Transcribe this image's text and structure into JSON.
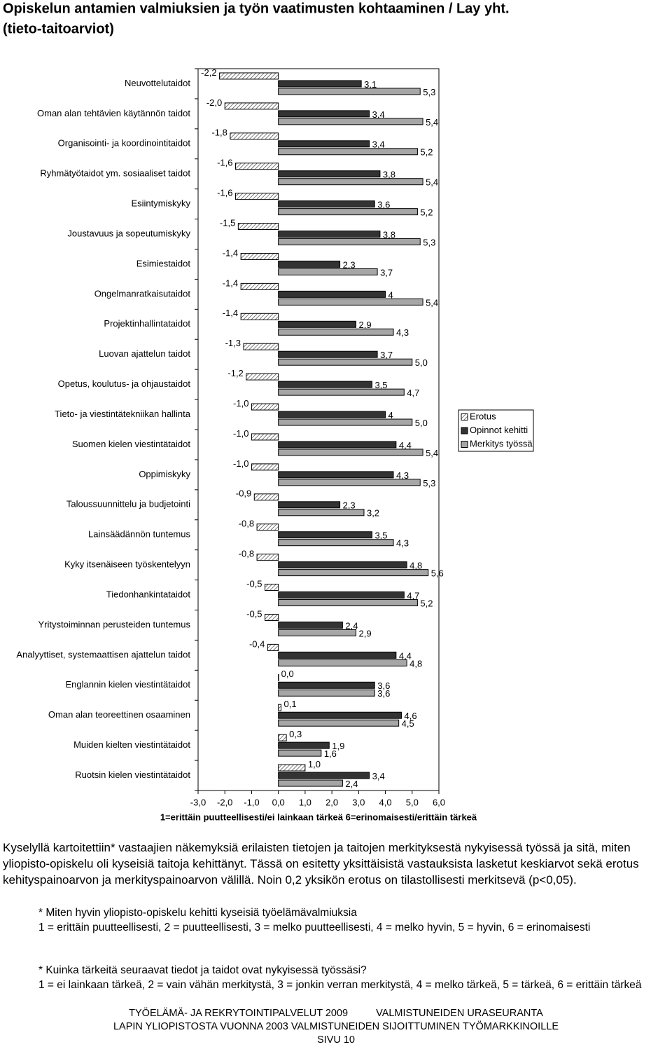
{
  "chart_data": {
    "type": "bar",
    "orientation": "horizontal",
    "title": "Opiskelun antamien valmiuksien ja työn vaatimusten kohtaaminen / Lay yht.",
    "subtitle": "(tieto-taitoarviot)",
    "x_label": "1=erittäin puutteellisesti/ei lainkaan tärkeä 6=erinomaisesti/erittäin tärkeä",
    "categories": [
      "Neuvottelutaidot",
      "Oman alan tehtävien käytännön taidot",
      "Organisointi- ja koordinointitaidot",
      "Ryhmätyötaidot ym. sosiaaliset taidot",
      "Esiintymiskyky",
      "Joustavuus ja sopeutumiskyky",
      "Esimiestaidot",
      "Ongelmanratkaisutaidot",
      "Projektinhallintataidot",
      "Luovan ajattelun taidot",
      "Opetus, koulutus- ja ohjaustaidot",
      "Tieto- ja viestintätekniikan hallinta",
      "Suomen kielen viestintätaidot",
      "Oppimiskyky",
      "Taloussuunnittelu ja budjetointi",
      "Lainsäädännön tuntemus",
      "Kyky itsenäiseen työskentelyyn",
      "Tiedonhankintataidot",
      "Yritystoiminnan perusteiden tuntemus",
      "Analyyttiset, systemaattisen ajattelun taidot",
      "Englannin kielen viestintätaidot",
      "Oman alan teoreettinen osaaminen",
      "Muiden kielten viestintätaidot",
      "Ruotsin kielen viestintätaidot"
    ],
    "series": [
      {
        "name": "Erotus",
        "color": "#333333",
        "hatch": true,
        "values": [
          -2.2,
          -2.0,
          -1.8,
          -1.6,
          -1.6,
          -1.5,
          -1.4,
          -1.4,
          -1.4,
          -1.3,
          -1.2,
          -1.0,
          -1.0,
          -1.0,
          -0.9,
          -0.8,
          -0.8,
          -0.5,
          -0.5,
          -0.4,
          0.0,
          0.1,
          0.3,
          1.0
        ],
        "value_labels": [
          "-2,2",
          "-2,0",
          "-1,8",
          "-1,6",
          "-1,6",
          "-1,5",
          "-1,4",
          "-1,4",
          "-1,4",
          "-1,3",
          "-1,2",
          "-1,0",
          "-1,0",
          "-1,0",
          "-0,9",
          "-0,8",
          "-0,8",
          "-0,5",
          "-0,5",
          "-0,4",
          "0,0",
          "0,1",
          "0,3",
          "1,0"
        ]
      },
      {
        "name": "Opinnot kehitti",
        "color": "#333333",
        "values": [
          3.1,
          3.4,
          3.4,
          3.8,
          3.6,
          3.8,
          2.3,
          4,
          2.9,
          3.7,
          3.5,
          4,
          4.4,
          4.3,
          2.3,
          3.5,
          4.8,
          4.7,
          2.4,
          4.4,
          3.6,
          4.6,
          1.9,
          3.4
        ],
        "value_labels": [
          "3,1",
          "3,4",
          "3,4",
          "3,8",
          "3,6",
          "3,8",
          "2,3",
          "4",
          "2,9",
          "3,7",
          "3,5",
          "4",
          "4,4",
          "4,3",
          "2,3",
          "3,5",
          "4,8",
          "4,7",
          "2,4",
          "4,4",
          "3,6",
          "4,6",
          "1,9",
          "3,4"
        ]
      },
      {
        "name": "Merkitys työssä",
        "color": "#a6a6a6",
        "values": [
          5.3,
          5.4,
          5.2,
          5.4,
          5.2,
          5.3,
          3.7,
          5.4,
          4.3,
          5.0,
          4.7,
          5.0,
          5.4,
          5.3,
          3.2,
          4.3,
          5.6,
          5.2,
          2.9,
          4.8,
          3.6,
          4.5,
          1.6,
          2.4
        ],
        "value_labels": [
          "5,3",
          "5,4",
          "5,2",
          "5,4",
          "5,2",
          "5,3",
          "3,7",
          "5,4",
          "4,3",
          "5,0",
          "4,7",
          "5,0",
          "5,4",
          "5,3",
          "3,2",
          "4,3",
          "5,6",
          "5,2",
          "2,9",
          "4,8",
          "3,6",
          "4,5",
          "1,6",
          "2,4"
        ]
      }
    ],
    "xlim": [
      -3,
      6
    ],
    "xticks": [
      {
        "value": -3,
        "label": "-3,0"
      },
      {
        "value": -2,
        "label": "-2,0"
      },
      {
        "value": -1,
        "label": "-1,0"
      },
      {
        "value": 0,
        "label": "0,0"
      },
      {
        "value": 1,
        "label": "1,0"
      },
      {
        "value": 2,
        "label": "2,0"
      },
      {
        "value": 3,
        "label": "3,0"
      },
      {
        "value": 4,
        "label": "4,0"
      },
      {
        "value": 5,
        "label": "5,0"
      },
      {
        "value": 6,
        "label": "6,0"
      }
    ],
    "legend": "right"
  },
  "document": {
    "paragraph": "Kyselyllä kartoitettiin* vastaajien näkemyksiä erilaisten tietojen ja taitojen merkityksestä nykyisessä työssä ja sitä, miten yliopisto-opiskelu oli kyseisiä taitoja kehittänyt. Tässä on esitetty yksittäisistä vastauksista lasketut keskiarvot sekä erotus kehityspainoarvon ja merkityspainoarvon välillä. Noin 0,2 yksikön erotus on tilastollisesti merkitsevä (p<0,05).",
    "notes": [
      {
        "question": "* Miten hyvin yliopisto-opiskelu kehitti kyseisiä työelämävalmiuksia",
        "scale": "1 = erittäin puutteellisesti, 2 = puutteellisesti, 3 = melko puutteellisesti, 4 = melko hyvin, 5 = hyvin, 6 = erinomaisesti"
      },
      {
        "question": "* Kuinka tärkeitä seuraavat tiedot ja taidot ovat nykyisessä työssäsi?",
        "scale": "1 = ei lainkaan tärkeä, 2 = vain vähän merkitystä, 3 = jonkin verran merkitystä, 4 = melko tärkeä, 5 = tärkeä, 6 = erittäin tärkeä"
      }
    ],
    "footer": [
      "TYÖELÄMÄ- JA REKRYTOINTIPALVELUT 2009",
      "VALMISTUNEIDEN URASEURANTA",
      "LAPIN YLIOPISTOSTA VUONNA 2003 VALMISTUNEIDEN SIJOITTUMINEN TYÖMARKKINOILLE",
      "SIVU 10"
    ]
  }
}
